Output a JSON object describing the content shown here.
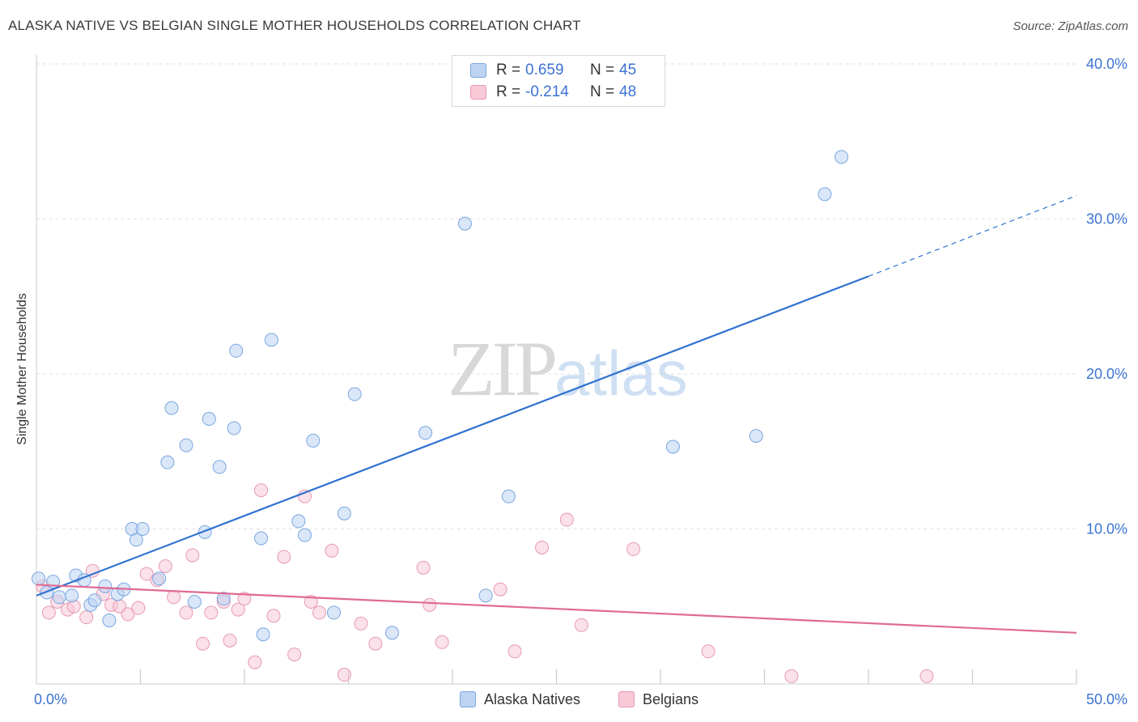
{
  "title": "ALASKA NATIVE VS BELGIAN SINGLE MOTHER HOUSEHOLDS CORRELATION CHART",
  "source": "Source: ZipAtlas.com",
  "watermark": {
    "part1": "ZIP",
    "part2": "atlas"
  },
  "legend_top": {
    "rows": [
      {
        "r_label": "R =",
        "r_value": "0.659",
        "n_label": "N =",
        "n_value": "45"
      },
      {
        "r_label": "R =",
        "r_value": "-0.214",
        "n_label": "N =",
        "n_value": "48"
      }
    ]
  },
  "legend_bottom": {
    "series1": "Alaska Natives",
    "series2": "Belgians"
  },
  "colors": {
    "blue_fill": "#bcd3f2",
    "blue_stroke": "#7aa6e0",
    "blue_line": "#2f72d0",
    "pink_fill": "#f8c9d7",
    "pink_stroke": "#e79ab3",
    "pink_line": "#e06a93",
    "grid": "#e2e2e2",
    "tick_label": "#3b73d4"
  },
  "chart_data": {
    "type": "scatter",
    "title": "ALASKA NATIVE VS BELGIAN SINGLE MOTHER HOUSEHOLDS CORRELATION CHART",
    "xlabel": "",
    "ylabel": "Single Mother Households",
    "xlim": [
      0,
      50
    ],
    "ylim": [
      0,
      40
    ],
    "x_tick_labels": [
      "0.0%",
      "50.0%"
    ],
    "y_ticks": [
      10,
      20,
      30,
      40
    ],
    "y_tick_labels": [
      "10.0%",
      "20.0%",
      "30.0%",
      "40.0%"
    ],
    "grid": true,
    "legend_placement": "top-center",
    "series": [
      {
        "name": "Alaska Natives",
        "r": 0.659,
        "n": 45,
        "trend": {
          "x": [
            0,
            40
          ],
          "y": [
            5.7,
            26.3
          ],
          "dashed_to": {
            "x": 50,
            "y": 31.5
          }
        },
        "points": [
          [
            0.1,
            6.8
          ],
          [
            0.5,
            5.9
          ],
          [
            0.8,
            6.6
          ],
          [
            1.1,
            5.6
          ],
          [
            1.7,
            5.7
          ],
          [
            1.9,
            7.0
          ],
          [
            2.3,
            6.7
          ],
          [
            2.6,
            5.1
          ],
          [
            2.8,
            5.4
          ],
          [
            3.3,
            6.3
          ],
          [
            3.5,
            4.1
          ],
          [
            3.9,
            5.8
          ],
          [
            4.2,
            6.1
          ],
          [
            4.6,
            10.0
          ],
          [
            4.8,
            9.3
          ],
          [
            5.1,
            10.0
          ],
          [
            5.9,
            6.8
          ],
          [
            6.3,
            14.3
          ],
          [
            6.5,
            17.8
          ],
          [
            7.2,
            15.4
          ],
          [
            7.6,
            5.3
          ],
          [
            8.1,
            9.8
          ],
          [
            8.3,
            17.1
          ],
          [
            8.8,
            14.0
          ],
          [
            9.0,
            5.5
          ],
          [
            9.5,
            16.5
          ],
          [
            9.6,
            21.5
          ],
          [
            10.8,
            9.4
          ],
          [
            10.9,
            3.2
          ],
          [
            11.3,
            22.2
          ],
          [
            12.6,
            10.5
          ],
          [
            12.9,
            9.6
          ],
          [
            13.3,
            15.7
          ],
          [
            14.3,
            4.6
          ],
          [
            14.8,
            11.0
          ],
          [
            15.3,
            18.7
          ],
          [
            17.1,
            3.3
          ],
          [
            18.7,
            16.2
          ],
          [
            20.6,
            29.7
          ],
          [
            21.6,
            5.7
          ],
          [
            22.7,
            12.1
          ],
          [
            30.6,
            15.3
          ],
          [
            34.6,
            16.0
          ],
          [
            37.9,
            31.6
          ],
          [
            38.7,
            34.0
          ]
        ]
      },
      {
        "name": "Belgians",
        "r": -0.214,
        "n": 48,
        "trend": {
          "x": [
            0,
            50
          ],
          "y": [
            6.4,
            3.3
          ]
        },
        "points": [
          [
            0.3,
            6.3
          ],
          [
            0.6,
            4.6
          ],
          [
            1.0,
            5.3
          ],
          [
            1.5,
            4.8
          ],
          [
            1.8,
            5.0
          ],
          [
            2.4,
            4.3
          ],
          [
            2.7,
            7.3
          ],
          [
            3.2,
            5.8
          ],
          [
            3.6,
            5.1
          ],
          [
            4.0,
            5.0
          ],
          [
            4.4,
            4.5
          ],
          [
            4.9,
            4.9
          ],
          [
            5.3,
            7.1
          ],
          [
            5.8,
            6.7
          ],
          [
            6.2,
            7.6
          ],
          [
            6.6,
            5.6
          ],
          [
            7.2,
            4.6
          ],
          [
            7.5,
            8.3
          ],
          [
            8.0,
            2.6
          ],
          [
            8.4,
            4.6
          ],
          [
            9.0,
            5.3
          ],
          [
            9.3,
            2.8
          ],
          [
            9.7,
            4.8
          ],
          [
            10.0,
            5.5
          ],
          [
            10.5,
            1.4
          ],
          [
            10.8,
            12.5
          ],
          [
            11.4,
            4.4
          ],
          [
            11.9,
            8.2
          ],
          [
            12.4,
            1.9
          ],
          [
            12.9,
            12.1
          ],
          [
            13.2,
            5.3
          ],
          [
            13.6,
            4.6
          ],
          [
            14.2,
            8.6
          ],
          [
            14.8,
            0.6
          ],
          [
            15.6,
            3.9
          ],
          [
            16.3,
            2.6
          ],
          [
            18.6,
            7.5
          ],
          [
            18.9,
            5.1
          ],
          [
            19.5,
            2.7
          ],
          [
            22.3,
            6.1
          ],
          [
            23.0,
            2.1
          ],
          [
            24.3,
            8.8
          ],
          [
            25.5,
            10.6
          ],
          [
            26.2,
            3.8
          ],
          [
            28.7,
            8.7
          ],
          [
            32.3,
            2.1
          ],
          [
            36.3,
            0.5
          ],
          [
            42.8,
            0.5
          ]
        ]
      }
    ]
  }
}
